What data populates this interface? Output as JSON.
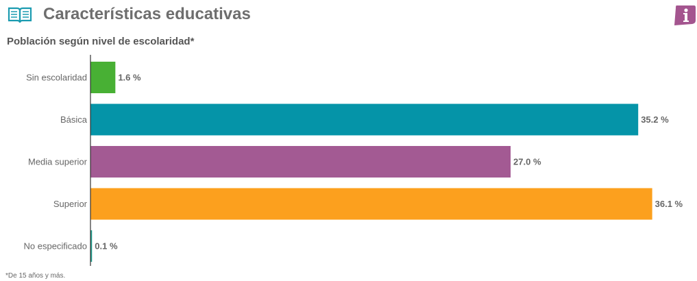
{
  "header": {
    "title": "Características educativas",
    "icon": "open-book-icon",
    "info_icon": "info-icon"
  },
  "colors": {
    "title": "#6e6e6e",
    "book_icon": "#1a9bb0",
    "info_icon": "#a4558f"
  },
  "footnote": "*De 15 años y más.",
  "chart_data": {
    "type": "bar",
    "orientation": "horizontal",
    "title": "Población según nivel de escolaridad*",
    "categories": [
      "Sin escolaridad",
      "Básica",
      "Media superior",
      "Superior",
      "No especificado"
    ],
    "values": [
      1.6,
      35.2,
      27.0,
      36.1,
      0.1
    ],
    "value_labels": [
      "1.6 %",
      "35.2 %",
      "27.0 %",
      "36.1 %",
      "0.1 %"
    ],
    "colors": [
      "#48b034",
      "#0594a8",
      "#a35a93",
      "#fca01e",
      "#1f9e8e"
    ],
    "xlim": [
      0,
      36.6
    ],
    "grid": false,
    "legend": "none"
  }
}
